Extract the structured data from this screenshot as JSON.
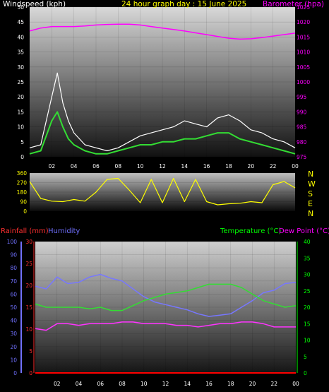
{
  "colors": {
    "white": "#ffffff",
    "yellow": "#ffff00",
    "magenta": "#ff00ff",
    "green": "#00ff00",
    "red": "#ff3030",
    "blue": "#7070ff",
    "wind_gust": "#ffffff",
    "wind_avg": "#33dd33",
    "humidity": "#7777ff",
    "temperature": "#33dd33",
    "dewpoint": "#ff33ff",
    "rainfall": "#ff0000"
  },
  "labels": {
    "windspeed": "Windspeed (kph)",
    "graph_title": "24 hour graph day : 15 June 2025",
    "barometer": "Barometer (hpa)",
    "rainfall": "Rainfall (mm)",
    "humidity": "Humidity",
    "temperature": "Temperature (°C)",
    "dewpoint": "Dew Point (°C)",
    "compass": [
      "N",
      "W",
      "S",
      "E",
      "N"
    ]
  },
  "chart_data": [
    {
      "type": "line",
      "title": "24 hour graph day : 15 June 2025",
      "x_ticks": [
        "02",
        "04",
        "06",
        "08",
        "10",
        "12",
        "14",
        "16",
        "18",
        "20",
        "22",
        "00"
      ],
      "y_left_label": "Windspeed (kph)",
      "y_left_ticks": [
        0,
        5,
        10,
        15,
        20,
        25,
        30,
        35,
        40,
        45,
        50
      ],
      "y_left_range": [
        0,
        50
      ],
      "y_right_label": "Barometer (hpa)",
      "y_right_ticks": [
        975,
        980,
        985,
        990,
        995,
        1000,
        1005,
        1010,
        1015,
        1020,
        1025
      ],
      "y_right_range": [
        975,
        1025
      ],
      "x_hours": [
        0,
        1,
        2,
        2.5,
        3,
        3.5,
        4,
        5,
        6,
        7,
        8,
        9,
        10,
        11,
        12,
        13,
        14,
        15,
        16,
        17,
        18,
        19,
        20,
        21,
        22,
        23,
        24
      ],
      "series": [
        {
          "name": "Barometer (hpa)",
          "axis": "right",
          "values": [
            1017,
            1018,
            1018.5,
            1018.5,
            1018.5,
            1018.5,
            1018.5,
            1018.7,
            1019,
            1019.2,
            1019.3,
            1019.3,
            1019,
            1018.5,
            1018,
            1017.5,
            1017,
            1016.4,
            1015.8,
            1015.2,
            1014.6,
            1014.3,
            1014.4,
            1014.8,
            1015.3,
            1015.8,
            1016.3
          ]
        },
        {
          "name": "Wind gust",
          "axis": "left",
          "values": [
            3,
            4,
            20,
            28,
            18,
            12,
            8,
            4,
            3,
            2,
            3,
            5,
            7,
            8,
            9,
            10,
            12,
            11,
            10,
            13,
            14,
            12,
            9,
            8,
            6,
            5,
            3
          ]
        },
        {
          "name": "Wind average",
          "axis": "left",
          "values": [
            1,
            2,
            12,
            15,
            10,
            6,
            4,
            2,
            1,
            1,
            2,
            3,
            4,
            4,
            5,
            5,
            6,
            6,
            7,
            8,
            8,
            6,
            5,
            4,
            3,
            2,
            1
          ]
        }
      ]
    },
    {
      "type": "line",
      "y_ticks": [
        0,
        90,
        180,
        270,
        360
      ],
      "y_range": [
        0,
        360
      ],
      "compass_labels": [
        "N",
        "W",
        "S",
        "E",
        "N"
      ],
      "x_hours": [
        0,
        1,
        2,
        3,
        4,
        5,
        6,
        7,
        8,
        9,
        10,
        11,
        12,
        13,
        14,
        15,
        16,
        17,
        18,
        19,
        20,
        21,
        22,
        23,
        24
      ],
      "series": [
        {
          "name": "Wind direction",
          "values": [
            280,
            120,
            95,
            90,
            110,
            95,
            180,
            300,
            310,
            200,
            80,
            300,
            80,
            310,
            90,
            300,
            90,
            60,
            70,
            75,
            90,
            80,
            250,
            280,
            220
          ]
        }
      ]
    },
    {
      "type": "line",
      "x_ticks": [
        "02",
        "04",
        "06",
        "08",
        "10",
        "12",
        "14",
        "16",
        "18",
        "20",
        "22",
        "00"
      ],
      "humidity_ticks": [
        0,
        10,
        20,
        30,
        40,
        50,
        60,
        70,
        80,
        90,
        100
      ],
      "rainfall_ticks": [
        0,
        5,
        10,
        15,
        20,
        25,
        30
      ],
      "temp_ticks": [
        0,
        5,
        10,
        15,
        20,
        25,
        30,
        35,
        40
      ],
      "rainfall_range": [
        0,
        30
      ],
      "temp_range": [
        0,
        40
      ],
      "x_hours": [
        0,
        1,
        2,
        3,
        4,
        5,
        6,
        7,
        8,
        9,
        10,
        11,
        12,
        13,
        14,
        15,
        16,
        17,
        18,
        19,
        20,
        21,
        22,
        23,
        24
      ],
      "series": [
        {
          "name": "Humidity",
          "axis": "left",
          "values": [
            66,
            64,
            73,
            68,
            69,
            73,
            75,
            72,
            70,
            64,
            58,
            54,
            52,
            50,
            48,
            45,
            43,
            44,
            45,
            50,
            55,
            61,
            63,
            68,
            69
          ]
        },
        {
          "name": "Temperature (°C)",
          "axis": "right",
          "values": [
            21,
            20,
            20,
            20,
            20,
            19.5,
            20,
            19,
            19,
            20.5,
            22,
            23,
            24,
            24.5,
            25,
            26,
            27,
            27,
            27,
            26,
            24,
            22,
            21,
            20,
            20.5
          ]
        },
        {
          "name": "Dew Point (°C)",
          "axis": "right",
          "values": [
            13.5,
            13,
            15,
            15,
            14.5,
            15,
            15,
            15,
            15.5,
            15.5,
            15,
            15,
            15,
            14.5,
            14.5,
            14,
            14.5,
            15,
            15,
            15.5,
            15.5,
            15,
            14,
            14,
            14
          ]
        },
        {
          "name": "Rainfall (mm)",
          "axis": "left",
          "values": [
            0,
            0,
            0,
            0,
            0,
            0,
            0,
            0,
            0,
            0,
            0,
            0,
            0,
            0,
            0,
            0,
            0,
            0,
            0,
            0,
            0,
            0,
            0,
            0,
            0
          ]
        }
      ]
    }
  ]
}
